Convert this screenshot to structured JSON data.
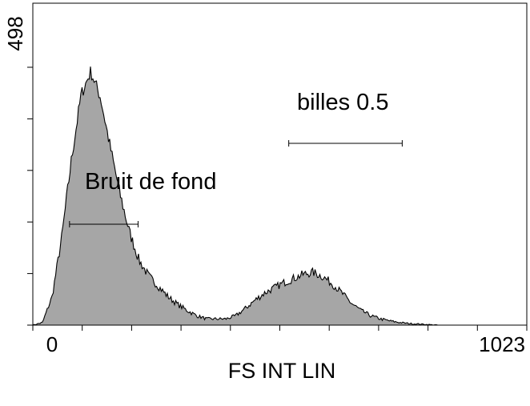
{
  "chart_data": {
    "type": "area",
    "title": "",
    "xlabel": "FS INT LIN",
    "ylabel": "",
    "xlim": [
      0,
      1023
    ],
    "ylim": [
      0,
      498
    ],
    "x_tick_labels": [
      "0",
      "1023"
    ],
    "y_tick_labels": [
      "498"
    ],
    "grid": false,
    "fill_color": "#a6a6a6",
    "line_color": "#000000",
    "series": [
      {
        "x": [
          0,
          20,
          40,
          60,
          80,
          100,
          120,
          140,
          160,
          180,
          200,
          220,
          240,
          260,
          280,
          300,
          320,
          340,
          360,
          380,
          400,
          420,
          440,
          460,
          480,
          500,
          520,
          540,
          560,
          580,
          600,
          620,
          640,
          660,
          680,
          700,
          720,
          740,
          760,
          780,
          800,
          820,
          840,
          860,
          880,
          900,
          920,
          940,
          960,
          980,
          1000,
          1023
        ],
        "values": [
          0,
          5,
          55,
          170,
          320,
          445,
          490,
          440,
          345,
          255,
          180,
          125,
          95,
          75,
          55,
          40,
          28,
          18,
          12,
          12,
          12,
          18,
          32,
          48,
          62,
          72,
          82,
          90,
          98,
          102,
          94,
          80,
          62,
          42,
          28,
          18,
          12,
          8,
          5,
          3,
          2,
          1,
          0,
          0,
          0,
          0,
          0,
          0,
          0,
          0,
          0,
          0
        ]
      }
    ],
    "annotations": [
      {
        "text": "Bruit de fond",
        "gate_x": [
          76,
          218
        ]
      },
      {
        "text": "billes 0.5",
        "gate_x": [
          530,
          765
        ]
      }
    ]
  }
}
